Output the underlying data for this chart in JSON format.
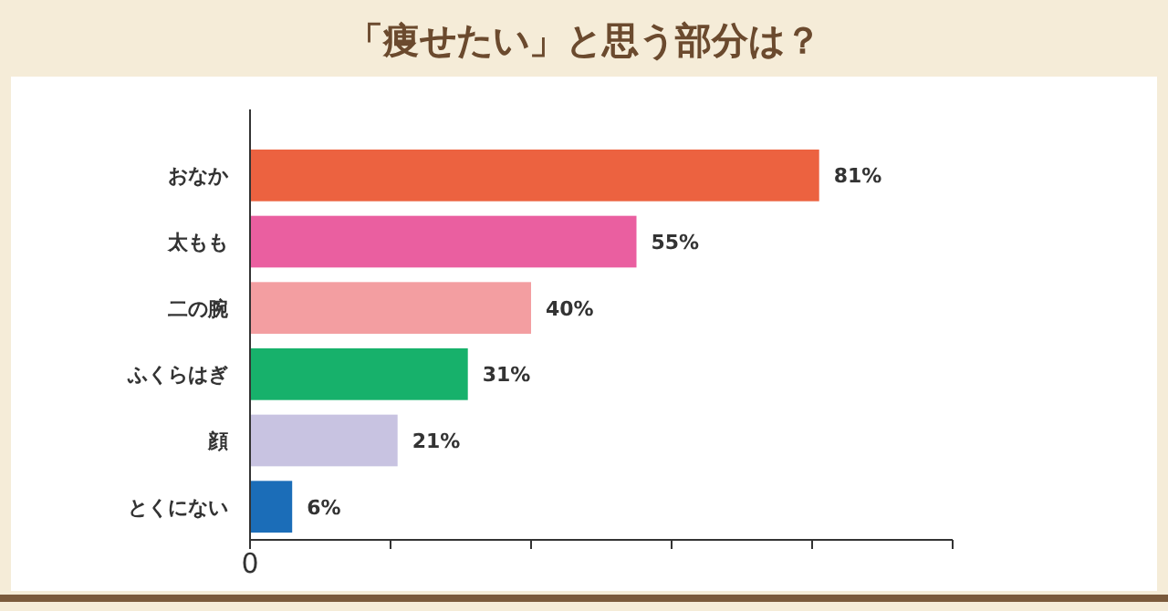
{
  "chart_data": {
    "type": "bar",
    "orientation": "horizontal",
    "title": "「痩せたい」と思う部分は？",
    "categories": [
      "おなか",
      "太もも",
      "二の腕",
      "ふくらはぎ",
      "顔",
      "とくにない"
    ],
    "values": [
      81,
      55,
      40,
      31,
      21,
      6
    ],
    "colors": [
      "#ec6240",
      "#ea5fa0",
      "#f39ea1",
      "#17b16b",
      "#c8c3e1",
      "#1b6db8"
    ],
    "value_labels": [
      "81%",
      "55%",
      "40%",
      "31%",
      "21%",
      "6%"
    ],
    "xlim": [
      0,
      100
    ],
    "annotations": [
      "0"
    ],
    "xticks": [
      {
        "value": 0,
        "label": null
      },
      {
        "value": 20,
        "label": null
      },
      {
        "value": 40,
        "label": null
      },
      {
        "value": 60,
        "label": null
      },
      {
        "value": 80,
        "label": null
      },
      {
        "value": 100,
        "label": null
      }
    ],
    "grid": false
  }
}
